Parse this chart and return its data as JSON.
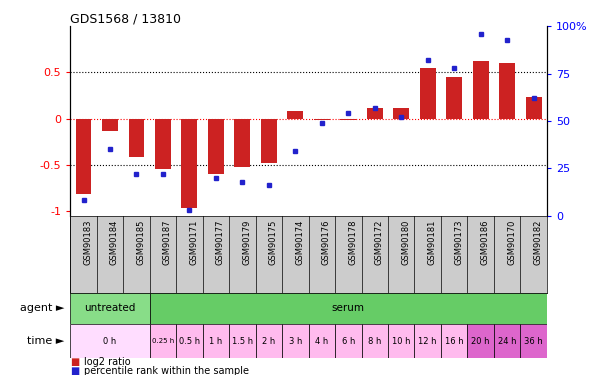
{
  "title": "GDS1568 / 13810",
  "samples": [
    "GSM90183",
    "GSM90184",
    "GSM90185",
    "GSM90187",
    "GSM90171",
    "GSM90177",
    "GSM90179",
    "GSM90175",
    "GSM90174",
    "GSM90176",
    "GSM90178",
    "GSM90172",
    "GSM90180",
    "GSM90181",
    "GSM90173",
    "GSM90186",
    "GSM90170",
    "GSM90182"
  ],
  "log2_ratio": [
    -0.82,
    -0.13,
    -0.42,
    -0.55,
    -0.97,
    -0.6,
    -0.52,
    -0.48,
    0.08,
    -0.02,
    -0.02,
    0.12,
    0.12,
    0.55,
    0.45,
    0.62,
    0.6,
    0.23
  ],
  "percentile_rank": [
    8,
    35,
    22,
    22,
    3,
    20,
    18,
    16,
    34,
    49,
    54,
    57,
    52,
    82,
    78,
    96,
    93,
    62
  ],
  "bar_color": "#cc2222",
  "dot_color": "#2222cc",
  "ylim_left": [
    -1.05,
    1.0
  ],
  "ylim_right": [
    0,
    100
  ],
  "yticks_left": [
    -1,
    -0.5,
    0,
    0.5
  ],
  "ytick_labels_left": [
    "-1",
    "-0.5",
    "0",
    "0.5"
  ],
  "yticks_right": [
    0,
    25,
    50,
    75,
    100
  ],
  "ytick_labels_right": [
    "0",
    "25",
    "50",
    "75",
    "100%"
  ],
  "agent_untreated_cols": 3,
  "agent_color_untreated": "#88dd88",
  "agent_color_serum": "#66cc66",
  "time_groups": [
    {
      "label": "0 h",
      "start": 0,
      "end": 3,
      "color": "#ffddff"
    },
    {
      "label": "0.25 h",
      "start": 3,
      "end": 4,
      "color": "#ffbbee"
    },
    {
      "label": "0.5 h",
      "start": 4,
      "end": 5,
      "color": "#ffbbee"
    },
    {
      "label": "1 h",
      "start": 5,
      "end": 6,
      "color": "#ffbbee"
    },
    {
      "label": "1.5 h",
      "start": 6,
      "end": 7,
      "color": "#ffbbee"
    },
    {
      "label": "2 h",
      "start": 7,
      "end": 8,
      "color": "#ffbbee"
    },
    {
      "label": "3 h",
      "start": 8,
      "end": 9,
      "color": "#ffbbee"
    },
    {
      "label": "4 h",
      "start": 9,
      "end": 10,
      "color": "#ffbbee"
    },
    {
      "label": "6 h",
      "start": 10,
      "end": 11,
      "color": "#ffbbee"
    },
    {
      "label": "8 h",
      "start": 11,
      "end": 12,
      "color": "#ffbbee"
    },
    {
      "label": "10 h",
      "start": 12,
      "end": 13,
      "color": "#ffbbee"
    },
    {
      "label": "12 h",
      "start": 13,
      "end": 14,
      "color": "#ffbbee"
    },
    {
      "label": "16 h",
      "start": 14,
      "end": 15,
      "color": "#ffbbee"
    },
    {
      "label": "20 h",
      "start": 15,
      "end": 16,
      "color": "#dd66cc"
    },
    {
      "label": "24 h",
      "start": 16,
      "end": 17,
      "color": "#dd66cc"
    },
    {
      "label": "36 h",
      "start": 17,
      "end": 18,
      "color": "#dd66cc"
    }
  ],
  "bg_color": "#ffffff"
}
